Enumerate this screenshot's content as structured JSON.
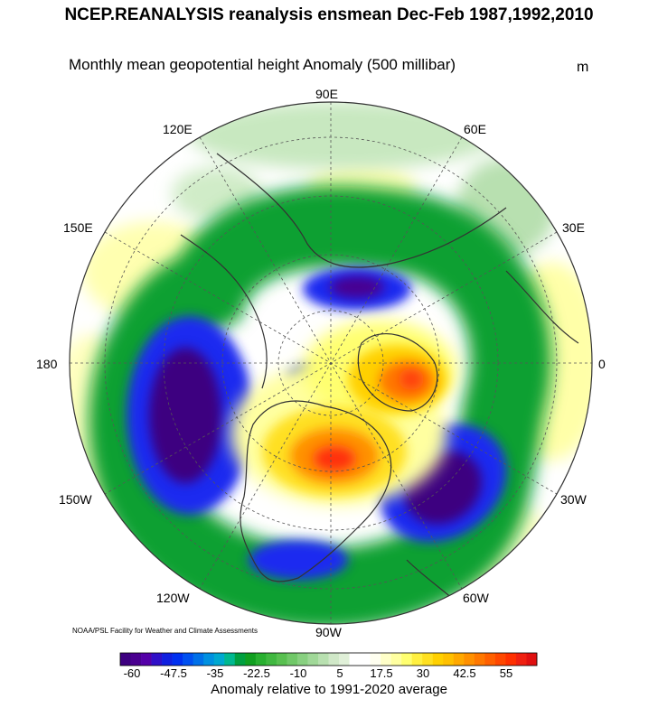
{
  "title": "NCEP.REANALYSIS reanalysis ensmean Dec-Feb 1987,1992,2010",
  "subtitle": "Monthly mean geopotential height Anomaly (500 millibar)",
  "units": "m",
  "longitude_labels": {
    "top": "90E",
    "upper_left": "120E",
    "upper_right": "60E",
    "left_upper": "150E",
    "right_upper": "30E",
    "left": "180",
    "right": "0",
    "left_lower": "150W",
    "right_lower": "30W",
    "lower_left": "120W",
    "lower_right": "60W",
    "bottom": "90W"
  },
  "credit": "NOAA/PSL Facility for Weather and Climate Assessments",
  "colorbar": {
    "tick_labels": [
      "-60",
      "-47.5",
      "-35",
      "-22.5",
      "-10",
      "5",
      "17.5",
      "30",
      "42.5",
      "55"
    ],
    "caption": "Anomaly relative to 1991-2020 average",
    "colors": [
      "#3d0080",
      "#4a0090",
      "#5400a8",
      "#3010c8",
      "#1020e0",
      "#0030f0",
      "#0050f0",
      "#0070e8",
      "#0090e0",
      "#00a8d0",
      "#00b890",
      "#00a040",
      "#10a020",
      "#28b030",
      "#40b840",
      "#58c050",
      "#70c868",
      "#88d080",
      "#a0d898",
      "#b8e0b0",
      "#d0e8c8",
      "#e0f0d8",
      "#ffffff",
      "#ffffff",
      "#fffff0",
      "#ffffc8",
      "#ffffa0",
      "#ffff70",
      "#fff040",
      "#ffe020",
      "#ffd000",
      "#ffc000",
      "#ffa800",
      "#ff9000",
      "#ff7800",
      "#ff6000",
      "#ff4800",
      "#ff3000",
      "#f02010",
      "#e01010"
    ]
  },
  "map_colors": {
    "strong_negative": "#3d0080",
    "negative_blue": "#0a20e8",
    "negative_green": "#10a020",
    "weak_negative": "#c8e8c0",
    "weak_positive": "#ffffa8",
    "positive_yellow": "#ffe020",
    "positive_orange": "#ff9000",
    "strong_positive": "#ff3010"
  }
}
